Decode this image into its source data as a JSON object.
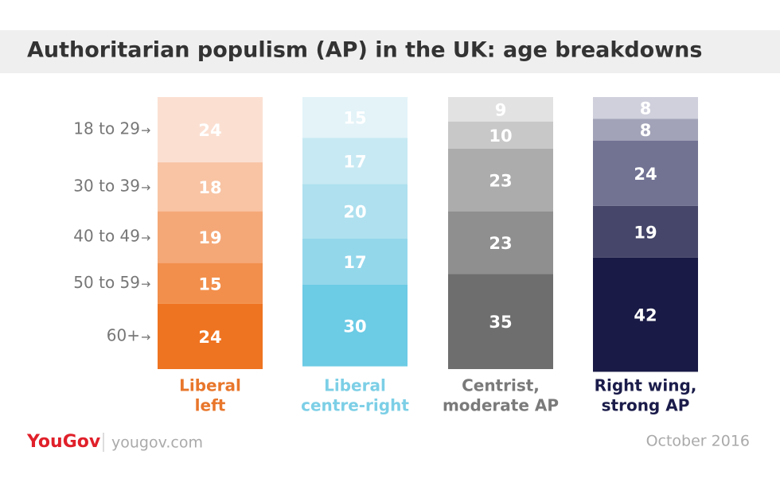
{
  "chart_data": {
    "type": "stacked-column",
    "title": "Authoritarian populism (AP) in the UK: age breakdowns",
    "categories": [
      [
        "Liberal",
        "left"
      ],
      [
        "Liberal",
        "centre-right"
      ],
      [
        "Centrist,",
        "moderate AP"
      ],
      [
        "Right wing,",
        "strong AP"
      ]
    ],
    "category_colors": [
      "#e8762b",
      "#7ccfe6",
      "#7a7a7a",
      "#1b1c4a"
    ],
    "ylim": [
      0,
      100
    ],
    "series": [
      {
        "name": "18 to 29",
        "colors": [
          "#fbe0d2",
          "#e3f3f8",
          "#e2e2e2",
          "#cfd0dc"
        ],
        "values": [
          24,
          15,
          9,
          8
        ]
      },
      {
        "name": "30 to 39",
        "colors": [
          "#f8c4a4",
          "#c7e9f3",
          "#c8c8c8",
          "#a2a3b8"
        ],
        "values": [
          18,
          17,
          10,
          8
        ]
      },
      {
        "name": "40 to 49",
        "colors": [
          "#f5a877",
          "#aee0ef",
          "#acacac",
          "#727393"
        ],
        "values": [
          19,
          20,
          23,
          24
        ]
      },
      {
        "name": "50 to 59",
        "colors": [
          "#f28f4c",
          "#93d7eb",
          "#8f8f8f",
          "#454669"
        ],
        "values": [
          15,
          17,
          23,
          19
        ]
      },
      {
        "name": "60+",
        "colors": [
          "#ef7421",
          "#6ccbe5",
          "#6e6e6e",
          "#191a45"
        ],
        "values": [
          24,
          30,
          35,
          42
        ]
      }
    ],
    "logo": "YouGov",
    "source": "yougov.com",
    "date": "October 2016"
  }
}
